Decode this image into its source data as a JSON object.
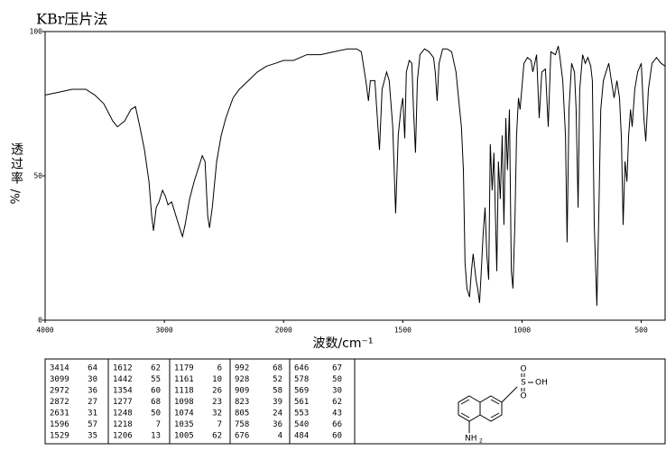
{
  "chart_data": {
    "type": "line",
    "title": "KBr压片法",
    "x_label": "波数/cm⁻¹",
    "y_label": "透过率",
    "y_label_unit": "%/",
    "xlim": [
      4000,
      400
    ],
    "ylim": [
      0,
      100
    ],
    "xticks": [
      4000,
      3000,
      2000,
      1500,
      1000,
      500
    ],
    "yticks": [
      0,
      50,
      100
    ],
    "x_scale_break": 2000,
    "x_scale_factor": 2,
    "color": "#000000",
    "grid": false,
    "x": [
      4000,
      3886,
      3773,
      3659,
      3583,
      3508,
      3432,
      3394,
      3333,
      3280,
      3242,
      3205,
      3167,
      3129,
      3106,
      3091,
      3068,
      3045,
      3015,
      2992,
      2970,
      2939,
      2902,
      2864,
      2848,
      2826,
      2788,
      2750,
      2712,
      2682,
      2659,
      2636,
      2621,
      2598,
      2561,
      2523,
      2485,
      2424,
      2371,
      2295,
      2220,
      2144,
      2068,
      2000,
      1958,
      1902,
      1845,
      1788,
      1731,
      1693,
      1674,
      1655,
      1644,
      1636,
      1617,
      1598,
      1587,
      1568,
      1557,
      1542,
      1530,
      1519,
      1508,
      1500,
      1492,
      1485,
      1473,
      1462,
      1455,
      1447,
      1439,
      1428,
      1409,
      1390,
      1371,
      1364,
      1356,
      1348,
      1333,
      1314,
      1295,
      1277,
      1265,
      1254,
      1246,
      1239,
      1231,
      1220,
      1212,
      1205,
      1193,
      1186,
      1178,
      1171,
      1163,
      1155,
      1148,
      1140,
      1133,
      1125,
      1118,
      1106,
      1099,
      1091,
      1083,
      1076,
      1068,
      1061,
      1053,
      1045,
      1038,
      1030,
      1023,
      1015,
      1008,
      992,
      977,
      962,
      955,
      939,
      928,
      917,
      902,
      890,
      879,
      860,
      848,
      841,
      829,
      818,
      811,
      803,
      792,
      780,
      773,
      765,
      758,
      746,
      735,
      724,
      712,
      705,
      697,
      686,
      678,
      670,
      659,
      648,
      636,
      625,
      614,
      602,
      591,
      583,
      576,
      568,
      560,
      553,
      545,
      538,
      527,
      515,
      500,
      489,
      481,
      470,
      455,
      436,
      417,
      400
    ],
    "values": [
      78,
      79,
      80,
      80,
      78,
      75,
      69,
      67,
      69,
      73,
      74,
      67,
      59,
      48,
      36,
      31,
      39,
      41,
      45,
      43,
      40,
      41,
      36,
      31,
      29,
      33,
      42,
      48,
      53,
      57,
      55,
      36,
      32,
      39,
      55,
      64,
      70,
      77,
      80,
      83,
      86,
      88,
      89,
      90,
      90,
      92,
      92,
      93,
      94,
      94,
      93,
      83,
      76,
      83,
      83,
      59,
      80,
      86,
      83,
      67,
      37,
      64,
      73,
      77,
      63,
      86,
      90,
      89,
      73,
      58,
      83,
      92,
      94,
      93,
      91,
      86,
      76,
      89,
      94,
      94,
      93,
      86,
      76,
      67,
      52,
      20,
      11,
      8,
      17,
      23,
      14,
      11,
      6,
      17,
      30,
      39,
      23,
      14,
      61,
      45,
      58,
      17,
      55,
      42,
      64,
      33,
      70,
      52,
      73,
      17,
      11,
      33,
      64,
      77,
      73,
      89,
      91,
      90,
      86,
      92,
      70,
      86,
      87,
      67,
      93,
      92,
      95,
      91,
      83,
      64,
      27,
      73,
      89,
      86,
      73,
      39,
      80,
      92,
      89,
      91,
      88,
      83,
      33,
      5,
      36,
      73,
      83,
      86,
      89,
      83,
      77,
      83,
      77,
      63,
      33,
      55,
      48,
      64,
      73,
      67,
      80,
      86,
      89,
      70,
      62,
      80,
      89,
      91,
      89,
      88
    ]
  },
  "peak_table": {
    "columns": [
      [
        [
          3414,
          64
        ],
        [
          3099,
          30
        ],
        [
          2972,
          36
        ],
        [
          2872,
          27
        ],
        [
          2631,
          31
        ],
        [
          1596,
          57
        ],
        [
          1529,
          35
        ]
      ],
      [
        [
          1612,
          62
        ],
        [
          1442,
          55
        ],
        [
          1354,
          60
        ],
        [
          1277,
          68
        ],
        [
          1248,
          50
        ],
        [
          1218,
          7
        ],
        [
          1206,
          13
        ]
      ],
      [
        [
          1179,
          6
        ],
        [
          1161,
          10
        ],
        [
          1118,
          26
        ],
        [
          1098,
          23
        ],
        [
          1074,
          32
        ],
        [
          1035,
          7
        ],
        [
          1005,
          62
        ]
      ],
      [
        [
          992,
          68
        ],
        [
          928,
          52
        ],
        [
          909,
          58
        ],
        [
          823,
          39
        ],
        [
          805,
          24
        ],
        [
          758,
          36
        ],
        [
          676,
          4
        ]
      ],
      [
        [
          646,
          67
        ],
        [
          578,
          50
        ],
        [
          569,
          30
        ],
        [
          561,
          62
        ],
        [
          553,
          43
        ],
        [
          540,
          66
        ],
        [
          484,
          60
        ]
      ]
    ]
  },
  "structure": {
    "sulfur": "S",
    "oxygen_top": "O",
    "oxygen_bottom": "O",
    "hydroxyl": "OH",
    "amine": "NH",
    "amine_subscript": "2"
  }
}
